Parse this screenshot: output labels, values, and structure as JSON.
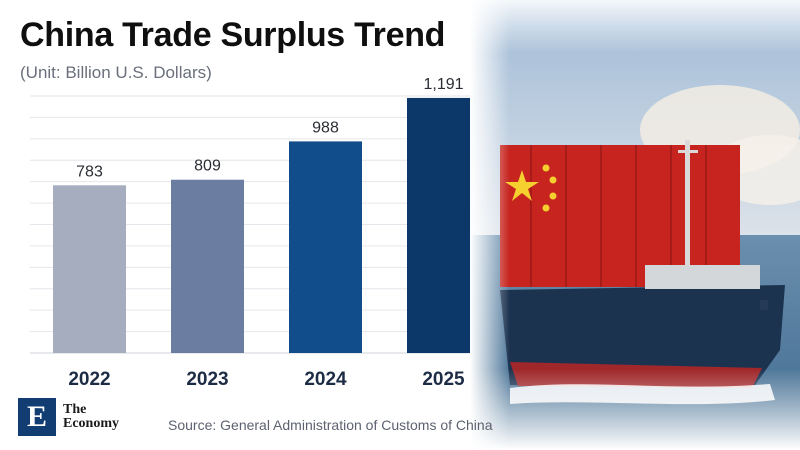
{
  "chart_data": {
    "type": "bar",
    "title": "China Trade Surplus Trend",
    "subtitle": "(Unit: Billion U.S. Dollars)",
    "categories": [
      "2022",
      "2023",
      "2024",
      "2025"
    ],
    "values": [
      783,
      809,
      988,
      1191
    ],
    "value_labels": [
      "783",
      "809",
      "988",
      "1,191"
    ],
    "bar_colors": [
      "#a5adbf",
      "#6b7da1",
      "#104d8a",
      "#0b3868"
    ],
    "ylim": [
      0,
      1200
    ],
    "grid": true
  },
  "source": "Source: General Administration of Customs of China",
  "logo": {
    "mark": "E",
    "line1": "The",
    "line2": "Economy"
  },
  "colors": {
    "gridline": "#e4e6eb",
    "axis_label": "#1d2c45",
    "value_label": "#2a2d34"
  }
}
